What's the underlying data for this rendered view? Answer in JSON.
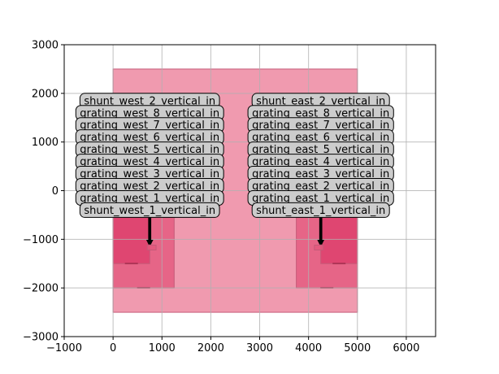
{
  "chart_data": {
    "type": "layout",
    "xlim": [
      -1000,
      6600
    ],
    "ylim": [
      -3000,
      3000
    ],
    "xticks": [
      -1000,
      0,
      1000,
      2000,
      3000,
      4000,
      5000,
      6000
    ],
    "yticks": [
      -3000,
      -2000,
      -1000,
      0,
      1000,
      2000,
      3000
    ],
    "grid": true,
    "colors": {
      "die": "#f09aaf",
      "die_edge": "#c55a78",
      "pad": "#e3577d",
      "pad_dark": "#dd3f6b",
      "label_box": "#cccccc",
      "label_edge": "#000000",
      "grid": "#b0b0b0"
    },
    "rects": [
      {
        "name": "die-outline",
        "x0": 0,
        "y0": -2500,
        "x1": 5000,
        "y1": 2500,
        "fill": "die"
      },
      {
        "name": "west-pad-large",
        "x0": 0,
        "y0": -2000,
        "x1": 1250,
        "y1": 0,
        "fill": "pad"
      },
      {
        "name": "west-pad-small",
        "x0": 0,
        "y0": -1500,
        "x1": 750,
        "y1": 0,
        "fill": "pad_dark"
      },
      {
        "name": "west-coupler",
        "x0": 700,
        "y0": -1220,
        "x1": 880,
        "y1": -1120,
        "fill": "pad"
      },
      {
        "name": "east-pad-large",
        "x0": 3750,
        "y0": -2000,
        "x1": 5000,
        "y1": 0,
        "fill": "pad"
      },
      {
        "name": "east-pad-small",
        "x0": 4250,
        "y0": -1500,
        "x1": 5000,
        "y1": 0,
        "fill": "pad_dark"
      },
      {
        "name": "east-coupler",
        "x0": 4120,
        "y0": -1220,
        "x1": 4300,
        "y1": -1120,
        "fill": "pad"
      }
    ],
    "ports": [
      {
        "label": "shunt_west_2_vertical_in",
        "x": 750,
        "y": 1850,
        "side": "west"
      },
      {
        "label": "grating_west_8_vertical_in",
        "x": 750,
        "y": 1600,
        "side": "west"
      },
      {
        "label": "grating_west_7_vertical_in",
        "x": 750,
        "y": 1350,
        "side": "west"
      },
      {
        "label": "grating_west_6_vertical_in",
        "x": 750,
        "y": 1100,
        "side": "west"
      },
      {
        "label": "grating_west_5_vertical_in",
        "x": 750,
        "y": 850,
        "side": "west"
      },
      {
        "label": "grating_west_4_vertical_in",
        "x": 750,
        "y": 600,
        "side": "west"
      },
      {
        "label": "grating_west_3_vertical_in",
        "x": 750,
        "y": 350,
        "side": "west"
      },
      {
        "label": "grating_west_2_vertical_in",
        "x": 750,
        "y": 100,
        "side": "west"
      },
      {
        "label": "grating_west_1_vertical_in",
        "x": 750,
        "y": -150,
        "side": "west"
      },
      {
        "label": "shunt_west_1_vertical_in",
        "x": 750,
        "y": -400,
        "side": "west"
      },
      {
        "label": "shunt_east_2_vertical_in",
        "x": 4250,
        "y": 1850,
        "side": "east"
      },
      {
        "label": "grating_east_8_vertical_in",
        "x": 4250,
        "y": 1600,
        "side": "east"
      },
      {
        "label": "grating_east_7_vertical_in",
        "x": 4250,
        "y": 1350,
        "side": "east"
      },
      {
        "label": "grating_east_6_vertical_in",
        "x": 4250,
        "y": 1100,
        "side": "east"
      },
      {
        "label": "grating_east_5_vertical_in",
        "x": 4250,
        "y": 850,
        "side": "east"
      },
      {
        "label": "grating_east_4_vertical_in",
        "x": 4250,
        "y": 600,
        "side": "east"
      },
      {
        "label": "grating_east_3_vertical_in",
        "x": 4250,
        "y": 350,
        "side": "east"
      },
      {
        "label": "grating_east_2_vertical_in",
        "x": 4250,
        "y": 100,
        "side": "east"
      },
      {
        "label": "grating_east_1_vertical_in",
        "x": 4250,
        "y": -150,
        "side": "east"
      },
      {
        "label": "shunt_east_1_vertical_in",
        "x": 4250,
        "y": -400,
        "side": "east"
      }
    ],
    "arrow_target_y": -1100
  }
}
